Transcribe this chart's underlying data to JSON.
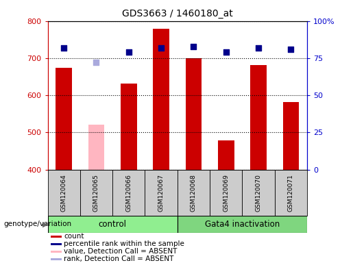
{
  "title": "GDS3663 / 1460180_at",
  "samples": [
    "GSM120064",
    "GSM120065",
    "GSM120066",
    "GSM120067",
    "GSM120068",
    "GSM120069",
    "GSM120070",
    "GSM120071"
  ],
  "count_values": [
    675,
    null,
    632,
    780,
    700,
    478,
    682,
    582
  ],
  "count_absent_values": [
    null,
    522,
    null,
    null,
    null,
    null,
    null,
    null
  ],
  "percentile_values": [
    82,
    null,
    79,
    82,
    83,
    79,
    82,
    81
  ],
  "percentile_absent_values": [
    null,
    72,
    null,
    null,
    null,
    null,
    null,
    null
  ],
  "ylim_left": [
    400,
    800
  ],
  "ylim_right": [
    0,
    100
  ],
  "yticks_left": [
    400,
    500,
    600,
    700,
    800
  ],
  "yticks_right": [
    0,
    25,
    50,
    75,
    100
  ],
  "ytick_labels_right": [
    "0",
    "25",
    "50",
    "75",
    "100%"
  ],
  "bar_width": 0.5,
  "bar_color": "#CC0000",
  "bar_absent_color": "#FFB6C1",
  "dot_color": "#00008B",
  "dot_absent_color": "#AAAADD",
  "dot_size": 40,
  "grid_color": "#000000",
  "axis_color_left": "#CC0000",
  "axis_color_right": "#0000CC",
  "legend_items": [
    {
      "label": "count",
      "color": "#CC0000"
    },
    {
      "label": "percentile rank within the sample",
      "color": "#00008B"
    },
    {
      "label": "value, Detection Call = ABSENT",
      "color": "#FFB6C1"
    },
    {
      "label": "rank, Detection Call = ABSENT",
      "color": "#AAAADD"
    }
  ],
  "genotype_label": "genotype/variation",
  "control_label": "control",
  "gata4_label": "Gata4 inactivation",
  "control_color": "#90EE90",
  "gata4_color": "#7FD67F"
}
